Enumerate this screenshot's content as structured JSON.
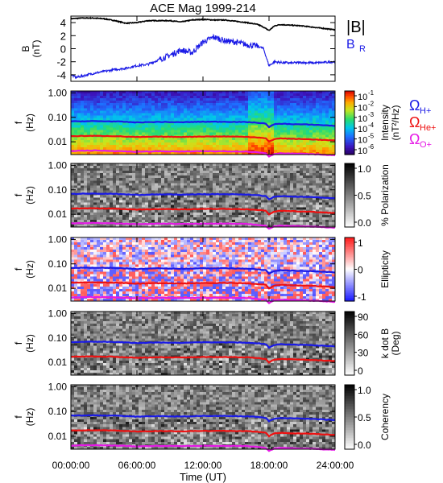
{
  "chart_data": {
    "type": "spectrogram-stack",
    "title": "ACE Mag 1999-214",
    "time_axis": {
      "label": "Time (UT)",
      "ticks": [
        "00:00:00",
        "06:00:00",
        "12:00:00",
        "18:00:00",
        "24:00:00"
      ],
      "range_hours": [
        0,
        24
      ]
    },
    "frequency_axis": {
      "label_top": "f",
      "label_bottom": "(Hz)",
      "scale": "log",
      "range_hz": [
        0.003,
        1.2
      ],
      "ticks": [
        "1.00",
        "0.10",
        "0.01"
      ]
    },
    "field_panel": {
      "ylabel_top": "B",
      "ylabel_bottom": "(nT)",
      "yticks": [
        "4",
        "2",
        "0",
        "-2",
        "-4"
      ],
      "ylim": [
        -5,
        5
      ],
      "legend": [
        {
          "label": "|B|",
          "color": "#000000"
        },
        {
          "label": "B",
          "sub": "R",
          "color": "#1a1ae6"
        }
      ],
      "series": [
        {
          "name": "|B|",
          "color": "#000000",
          "hours": [
            0,
            1,
            2,
            3,
            4,
            5,
            6,
            7,
            8,
            9,
            10,
            11,
            12,
            13,
            14,
            15,
            16,
            17,
            17.5,
            18,
            18.5,
            19,
            20,
            21,
            22,
            23,
            24
          ],
          "values": [
            4.6,
            4.7,
            4.7,
            4.6,
            4.3,
            3.9,
            4.0,
            4.3,
            4.3,
            4.3,
            4.1,
            4.4,
            4.5,
            4.4,
            4.4,
            4.2,
            4.0,
            3.7,
            3.3,
            2.8,
            3.5,
            3.7,
            3.6,
            3.5,
            3.3,
            3.1,
            2.9
          ]
        },
        {
          "name": "B_R",
          "color": "#1a1ae6",
          "hours": [
            0,
            0.5,
            1,
            2,
            3,
            4,
            5,
            6,
            7,
            8,
            9,
            10,
            11,
            12,
            13,
            14,
            15,
            16,
            17,
            17.5,
            18,
            18.5,
            19,
            20,
            21,
            22,
            23,
            24
          ],
          "values": [
            -4.0,
            -4.4,
            -4.2,
            -3.8,
            -3.5,
            -3.2,
            -3.0,
            -2.6,
            -2.4,
            -1.7,
            -1.0,
            -0.2,
            -0.6,
            1.0,
            1.8,
            1.2,
            1.0,
            0.6,
            0.4,
            0.0,
            -2.6,
            -2.0,
            -2.1,
            -2.2,
            -2.1,
            -2.2,
            -2.1,
            -2.0
          ]
        }
      ]
    },
    "gyro_lines": [
      {
        "name": "H+",
        "color": "#1a1ae6",
        "hours": [
          0,
          2,
          4,
          6,
          8,
          10,
          12,
          14,
          16,
          17,
          17.7,
          18,
          18.5,
          19,
          20,
          22,
          24
        ],
        "hz": [
          0.068,
          0.07,
          0.068,
          0.062,
          0.065,
          0.063,
          0.066,
          0.066,
          0.064,
          0.06,
          0.055,
          0.04,
          0.052,
          0.055,
          0.053,
          0.05,
          0.045
        ]
      },
      {
        "name": "He+",
        "color": "#ee1111",
        "hours": [
          0,
          2,
          4,
          6,
          8,
          10,
          12,
          14,
          16,
          17,
          17.7,
          18,
          18.5,
          19,
          20,
          22,
          24
        ],
        "hz": [
          0.017,
          0.0175,
          0.017,
          0.0155,
          0.0162,
          0.0158,
          0.0165,
          0.0165,
          0.016,
          0.015,
          0.0138,
          0.01,
          0.013,
          0.0138,
          0.0133,
          0.0125,
          0.0112
        ]
      },
      {
        "name": "O+",
        "color": "#e619e6",
        "hours": [
          0,
          2,
          4,
          6,
          8,
          10,
          12,
          14,
          16,
          17,
          17.7,
          18,
          18.5,
          19,
          20,
          22,
          24
        ],
        "hz": [
          0.0042,
          0.0044,
          0.0042,
          0.0039,
          0.0041,
          0.004,
          0.0041,
          0.0041,
          0.004,
          0.0037,
          0.0034,
          0.0025,
          0.0032,
          0.0034,
          0.0033,
          0.0031,
          0.0028
        ]
      }
    ],
    "ion_legend": [
      {
        "symbol": "Ω",
        "sub": "H+",
        "color": "#1a1ae6"
      },
      {
        "symbol": "Ω",
        "sub": "He+",
        "color": "#ee1111"
      },
      {
        "symbol": "Ω",
        "sub": "O+",
        "color": "#e619e6"
      }
    ],
    "panels": [
      {
        "id": "intensity",
        "colormap": "rainbow",
        "lines": [
          "H+",
          "He+",
          "O+"
        ],
        "colorbar_title_top": "Intensity",
        "colorbar_title_bottom": "(nT²/Hz)",
        "colorbar_ticks": [
          {
            "base": "10",
            "exp": "-1"
          },
          {
            "base": "10",
            "exp": "-2"
          },
          {
            "base": "10",
            "exp": "-3"
          },
          {
            "base": "10",
            "exp": "-4"
          },
          {
            "base": "10",
            "exp": "-5"
          },
          {
            "base": "10",
            "exp": "-6"
          }
        ],
        "range": [
          -6.5,
          -0.5
        ]
      },
      {
        "id": "polarization",
        "colormap": "gray",
        "lines": [
          "H+",
          "He+",
          "O+"
        ],
        "colorbar_title_top": "% Polarization",
        "colorbar_title_bottom": "",
        "colorbar_ticks": [
          {
            "base": "1.0"
          },
          {
            "base": "0.5"
          },
          {
            "base": "0.0"
          }
        ],
        "range": [
          0,
          1
        ]
      },
      {
        "id": "ellipticity",
        "colormap": "bwr",
        "lines": [
          "H+",
          "He+",
          "O+"
        ],
        "colorbar_title_top": "Ellipticity",
        "colorbar_title_bottom": "",
        "colorbar_ticks": [
          {
            "base": "1"
          },
          {
            "base": "0"
          },
          {
            "base": "-1"
          }
        ],
        "range": [
          -1,
          1
        ]
      },
      {
        "id": "kdotb",
        "colormap": "gray",
        "lines": [
          "H+",
          "He+"
        ],
        "colorbar_title_top": "k dot B",
        "colorbar_title_bottom": "(Deg)",
        "colorbar_ticks": [
          {
            "base": "90"
          },
          {
            "base": "60"
          },
          {
            "base": "30"
          },
          {
            "base": "0"
          }
        ],
        "range": [
          0,
          90
        ]
      },
      {
        "id": "coherency",
        "colormap": "gray",
        "lines": [
          "H+",
          "He+",
          "O+"
        ],
        "colorbar_title_top": "Coherency",
        "colorbar_title_bottom": "",
        "colorbar_ticks": [
          {
            "base": "1.0"
          },
          {
            "base": "0.5"
          },
          {
            "base": "0.0"
          }
        ],
        "range": [
          0,
          1
        ]
      }
    ]
  }
}
